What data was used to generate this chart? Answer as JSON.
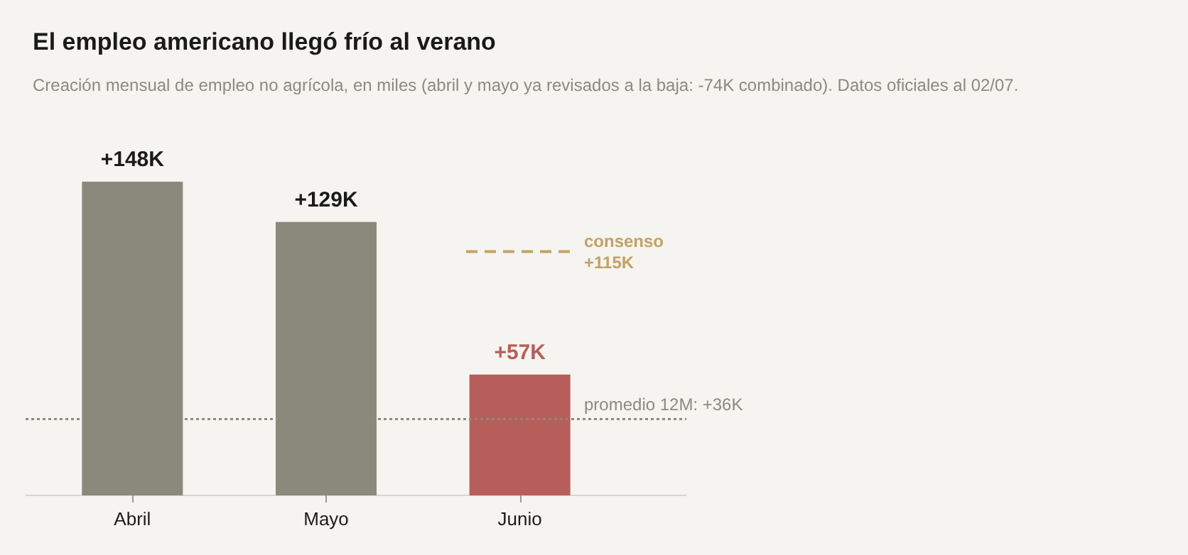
{
  "chart_data": {
    "type": "bar",
    "title": "El empleo americano llegó frío al verano",
    "subtitle": "Creación mensual de empleo no agrícola, en miles (abril y mayo ya revisados a la baja: -74K combinado). Datos oficiales al 02/07.",
    "categories": [
      "Abril",
      "Mayo",
      "Junio"
    ],
    "values": [
      148,
      129,
      57
    ],
    "value_labels": [
      "+148K",
      "+129K",
      "+57K"
    ],
    "colors": [
      "#8a8a7c",
      "#8a8a7c",
      "#b85e5a"
    ],
    "ref_lines": [
      {
        "axis": "y",
        "value": 115,
        "label": "consenso\n+115K",
        "color": "#c4a265",
        "line_style": "dashed"
      },
      {
        "axis": "y",
        "value": 36,
        "label": "promedio 12M: +36K",
        "color": "#8a8a80",
        "line_style": "dotted"
      }
    ]
  }
}
